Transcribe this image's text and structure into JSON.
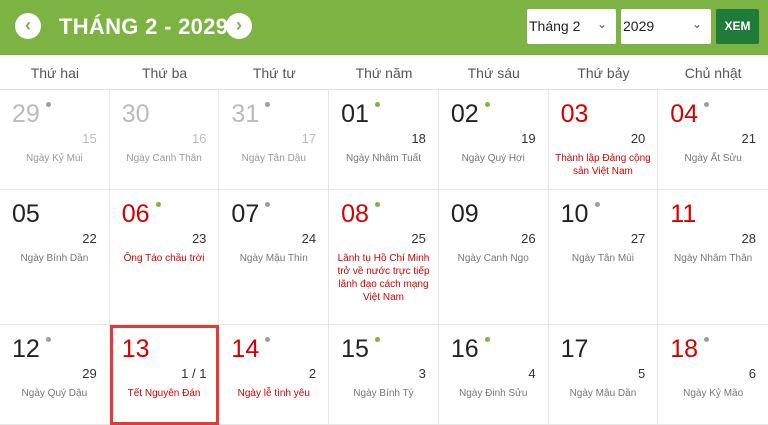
{
  "header": {
    "title": "THÁNG 2 - 2029",
    "prev": "‹",
    "next": "›",
    "month_select": "Tháng 2",
    "year_select": "2029",
    "view_button": "XEM"
  },
  "weekdays": [
    "Thứ hai",
    "Thứ ba",
    "Thứ tư",
    "Thứ năm",
    "Thứ sáu",
    "Thứ bảy",
    "Chủ nhật"
  ],
  "colors": {
    "header": "#7cb342",
    "holiday": "#d50000",
    "dot_green": "#7cb342",
    "dot_gray": "#9e9e9e",
    "selected_border": "#e53935"
  },
  "days": [
    {
      "day": "29",
      "lunar": "15",
      "label": "Ngày Kỷ Mùi",
      "dot": "gray",
      "other": true
    },
    {
      "day": "30",
      "lunar": "16",
      "label": "Ngày Canh Thân",
      "other": true
    },
    {
      "day": "31",
      "lunar": "17",
      "label": "Ngày Tân Dậu",
      "dot": "gray",
      "other": true
    },
    {
      "day": "01",
      "lunar": "18",
      "label": "Ngày Nhâm Tuất",
      "dot": "green"
    },
    {
      "day": "02",
      "lunar": "19",
      "label": "Ngày Quý Hợi",
      "dot": "green"
    },
    {
      "day": "03",
      "lunar": "20",
      "label": "Thành lập Đảng cộng sản Việt Nam",
      "red": true,
      "event": true
    },
    {
      "day": "04",
      "lunar": "21",
      "label": "Ngày Ất Sửu",
      "dot": "gray",
      "red": true
    },
    {
      "day": "05",
      "lunar": "22",
      "label": "Ngày Bính Dần"
    },
    {
      "day": "06",
      "lunar": "23",
      "label": "Ông Táo chầu trời",
      "dot": "green",
      "red": true,
      "event": true
    },
    {
      "day": "07",
      "lunar": "24",
      "label": "Ngày Mậu Thìn",
      "dot": "gray"
    },
    {
      "day": "08",
      "lunar": "25",
      "label": "Lãnh tụ Hồ Chí Minh trở về nước trực tiếp lãnh đạo cách mạng Việt Nam",
      "dot": "green",
      "red": true,
      "event": true
    },
    {
      "day": "09",
      "lunar": "26",
      "label": "Ngày Canh Ngọ"
    },
    {
      "day": "10",
      "lunar": "27",
      "label": "Ngày Tân Mùi",
      "dot": "gray"
    },
    {
      "day": "11",
      "lunar": "28",
      "label": "Ngày Nhâm Thân",
      "red": true
    },
    {
      "day": "12",
      "lunar": "29",
      "label": "Ngày Quý Dậu",
      "dot": "gray"
    },
    {
      "day": "13",
      "lunar": "1 / 1",
      "label": "Tết Nguyên Đán",
      "red": true,
      "event": true,
      "selected": true
    },
    {
      "day": "14",
      "lunar": "2",
      "label": "Ngày lễ tình yêu",
      "dot": "gray",
      "red": true,
      "event": true
    },
    {
      "day": "15",
      "lunar": "3",
      "label": "Ngày Bính Tý",
      "dot": "green"
    },
    {
      "day": "16",
      "lunar": "4",
      "label": "Ngày Đinh Sửu",
      "dot": "green"
    },
    {
      "day": "17",
      "lunar": "5",
      "label": "Ngày Mậu Dần"
    },
    {
      "day": "18",
      "lunar": "6",
      "label": "Ngày Kỷ Mão",
      "dot": "gray",
      "red": true
    }
  ]
}
